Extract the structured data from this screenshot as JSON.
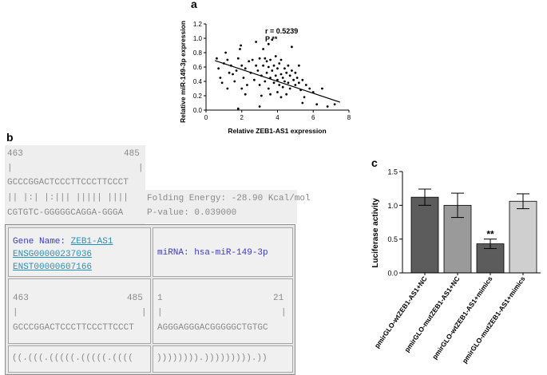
{
  "panels": {
    "a": "a",
    "b": "b",
    "c": "c"
  },
  "scatter": {
    "annot_r": "r = 0.5239",
    "annot_p": "P **",
    "xlabel": "Relative ZEB1-AS1 expression",
    "ylabel": "Relative miR-149-3p expression",
    "xticks": [
      "0",
      "2",
      "4",
      "6",
      "8"
    ],
    "yticks": [
      "0.0",
      "0.2",
      "0.4",
      "0.6",
      "0.8",
      "1.0",
      "1.2"
    ]
  },
  "alignment": {
    "start": "463",
    "end": "485",
    "bar": "|",
    "seq_top": "GCCCGGACTCCCTTCCCTTCCCT",
    "pairs": "|| |:| |:||| ||||| ||||",
    "seq_bottom": "CGTGTC-GGGGGCAGGA-GGGA",
    "folding_energy": "Folding Energy: -28.90 Kcal/mol",
    "pvalue": "P-value: 0.039000"
  },
  "table": {
    "gene_label": "Gene Name: ",
    "gene_name": "ZEB1-AS1",
    "ensg": "ENSG00000237036",
    "enst": "ENST00000607166",
    "mirna": "miRNA: hsa-miR-149-3p",
    "lnc_start": "463",
    "lnc_end": "485",
    "lnc_seq": "GCCCGGACTCCCTTCCCTTCCCT",
    "mir_start": "1",
    "mir_end": "21",
    "mir_seq": "AGGGAGGGACGGGGGCTGTGC",
    "bar": "|",
    "dot_left": "((.(((.(((((.(((((.((((",
    "dot_right": ")))))))).))))))))).))"
  },
  "chart_data": [
    {
      "type": "scatter",
      "xlabel": "Relative ZEB1-AS1 expression",
      "ylabel": "Relative miR-149-3p expression",
      "xlim": [
        0,
        8
      ],
      "ylim": [
        0,
        1.2
      ],
      "annotations": [
        "r = 0.5239",
        "P **"
      ],
      "regression": {
        "x": [
          0.5,
          7.5
        ],
        "y": [
          0.69,
          0.11
        ]
      },
      "points": [
        [
          0.6,
          0.72
        ],
        [
          0.7,
          0.58
        ],
        [
          0.8,
          0.45
        ],
        [
          0.9,
          0.38
        ],
        [
          1.0,
          0.65
        ],
        [
          1.1,
          0.8
        ],
        [
          1.2,
          0.7
        ],
        [
          1.3,
          0.52
        ],
        [
          1.4,
          0.62
        ],
        [
          1.5,
          0.5
        ],
        [
          1.6,
          0.4
        ],
        [
          1.7,
          0.55
        ],
        [
          1.8,
          0.72
        ],
        [
          1.9,
          0.85
        ],
        [
          1.95,
          0.9
        ],
        [
          2.0,
          0.3
        ],
        [
          2.0,
          0.62
        ],
        [
          2.1,
          0.45
        ],
        [
          2.2,
          0.58
        ],
        [
          2.3,
          0.35
        ],
        [
          2.4,
          0.68
        ],
        [
          2.5,
          0.52
        ],
        [
          2.6,
          0.7
        ],
        [
          2.7,
          0.42
        ],
        [
          2.8,
          0.62
        ],
        [
          2.9,
          0.55
        ],
        [
          3.0,
          0.72
        ],
        [
          3.0,
          0.35
        ],
        [
          3.1,
          0.48
        ],
        [
          3.2,
          0.62
        ],
        [
          3.2,
          0.85
        ],
        [
          3.3,
          0.4
        ],
        [
          3.3,
          0.72
        ],
        [
          3.4,
          0.52
        ],
        [
          3.4,
          0.68
        ],
        [
          3.5,
          0.3
        ],
        [
          3.5,
          0.6
        ],
        [
          3.5,
          0.92
        ],
        [
          3.6,
          0.45
        ],
        [
          3.6,
          0.7
        ],
        [
          3.7,
          0.55
        ],
        [
          3.7,
          0.98
        ],
        [
          3.8,
          0.38
        ],
        [
          3.8,
          0.62
        ],
        [
          3.9,
          0.48
        ],
        [
          3.9,
          0.75
        ],
        [
          4.0,
          0.25
        ],
        [
          4.0,
          0.42
        ],
        [
          4.0,
          0.58
        ],
        [
          4.1,
          0.35
        ],
        [
          4.1,
          0.65
        ],
        [
          4.2,
          0.5
        ],
        [
          4.2,
          0.7
        ],
        [
          4.3,
          0.32
        ],
        [
          4.3,
          0.45
        ],
        [
          4.4,
          0.58
        ],
        [
          4.4,
          0.4
        ],
        [
          4.5,
          0.22
        ],
        [
          4.5,
          0.52
        ],
        [
          4.6,
          0.38
        ],
        [
          4.6,
          0.62
        ],
        [
          4.7,
          0.3
        ],
        [
          4.7,
          0.48
        ],
        [
          4.8,
          0.55
        ],
        [
          4.8,
          0.88
        ],
        [
          4.9,
          0.42
        ],
        [
          5.0,
          0.35
        ],
        [
          5.0,
          0.52
        ],
        [
          5.1,
          0.45
        ],
        [
          5.2,
          0.38
        ],
        [
          5.2,
          0.62
        ],
        [
          5.3,
          0.28
        ],
        [
          5.4,
          0.42
        ],
        [
          5.5,
          0.18
        ],
        [
          5.6,
          0.35
        ],
        [
          5.8,
          0.3
        ],
        [
          6.0,
          0.25
        ],
        [
          6.2,
          0.08
        ],
        [
          6.5,
          0.3
        ],
        [
          6.8,
          0.05
        ],
        [
          7.2,
          0.08
        ],
        [
          3.0,
          0.05
        ],
        [
          2.8,
          0.95
        ],
        [
          1.2,
          0.3
        ],
        [
          1.8,
          0.02
        ],
        [
          3.6,
          0.22
        ],
        [
          4.2,
          0.18
        ],
        [
          5.4,
          0.1
        ],
        [
          2.2,
          0.22
        ],
        [
          3.1,
          0.2
        ]
      ]
    },
    {
      "type": "bar",
      "ylabel": "Luciferase activity",
      "ylim": [
        0,
        1.5
      ],
      "yticks": [
        "0.0",
        "0.5",
        "1.0",
        "1.5"
      ],
      "categories": [
        "pmirGLO-wtZEB1-AS1+NC",
        "pmirGLO-mutZEB1-AS1+NC",
        "pmirGLO-wtZEB1-AS1+mimics",
        "pmirGLO-mutZEB1-AS1+mimics"
      ],
      "values": [
        1.12,
        1.0,
        0.43,
        1.06
      ],
      "errors": [
        0.12,
        0.18,
        0.07,
        0.11
      ],
      "significance": [
        "",
        "",
        "**",
        ""
      ],
      "colors": [
        "#5c5c5c",
        "#9a9a9a",
        "#5c5c5c",
        "#cfcfcf"
      ]
    }
  ]
}
